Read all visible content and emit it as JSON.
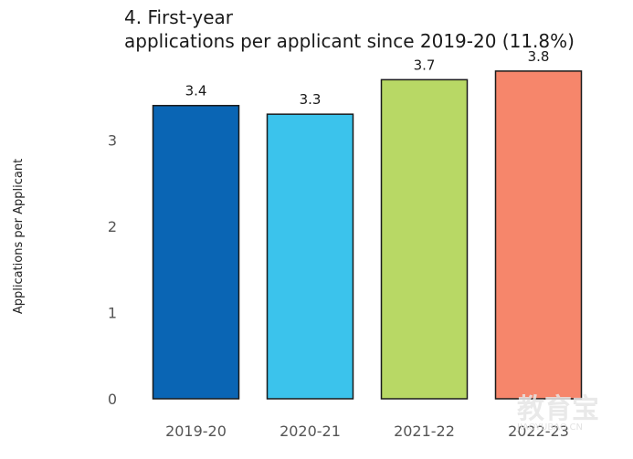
{
  "chart_data": {
    "type": "bar",
    "title_lines": [
      "4. First-year",
      "applications per applicant since 2019-20 (11.8%)"
    ],
    "ylabel": "Applications per Applicant",
    "xlabel": "",
    "categories": [
      "2019-20",
      "2020-21",
      "2021-22",
      "2022-23"
    ],
    "values": [
      3.4,
      3.3,
      3.7,
      3.8
    ],
    "value_labels": [
      "3.4",
      "3.3",
      "3.7",
      "3.8"
    ],
    "colors": [
      "#0a65b4",
      "#3bc3ec",
      "#b8d865",
      "#f6866b"
    ],
    "edge_color": "#1a1a1a",
    "ylim": [
      0,
      3.8
    ],
    "yticks": [
      0,
      1,
      2,
      3
    ],
    "grid": false
  },
  "watermark": {
    "main": "教育宝",
    "sub": "JIAOYUBAO.CN"
  }
}
